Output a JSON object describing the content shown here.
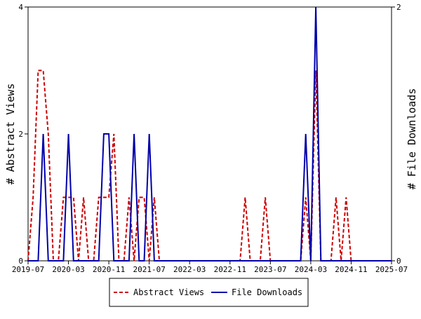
{
  "chart_data": {
    "type": "line",
    "title": "",
    "xlabel": "",
    "ylabel": "# Abstract Views",
    "y2label": "# File Downloads",
    "ylim": [
      0,
      4
    ],
    "y2lim": [
      0,
      2
    ],
    "yticks": [
      "0",
      "2",
      "4"
    ],
    "y2ticks": [
      "0",
      "2"
    ],
    "xticks": [
      "2019-07",
      "2020-03",
      "2020-11",
      "2021-07",
      "2022-03",
      "2022-11",
      "2023-07",
      "2024-03",
      "2024-11",
      "2025-07"
    ],
    "x_start": "2019-07",
    "x_end": "2025-07",
    "grid": false,
    "legend_position": "bottom",
    "series": [
      {
        "name": "Abstract Views",
        "axis": "left",
        "color": "#cc0000",
        "dash": "dashed",
        "points": [
          [
            "2019-07",
            0
          ],
          [
            "2019-08",
            1
          ],
          [
            "2019-09",
            3
          ],
          [
            "2019-10",
            3
          ],
          [
            "2019-11",
            2
          ],
          [
            "2019-12",
            0
          ],
          [
            "2020-01",
            0
          ],
          [
            "2020-02",
            1
          ],
          [
            "2020-03",
            1
          ],
          [
            "2020-04",
            1
          ],
          [
            "2020-05",
            0
          ],
          [
            "2020-06",
            1
          ],
          [
            "2020-07",
            0
          ],
          [
            "2020-08",
            0
          ],
          [
            "2020-09",
            1
          ],
          [
            "2020-10",
            1
          ],
          [
            "2020-11",
            1
          ],
          [
            "2020-12",
            2
          ],
          [
            "2021-01",
            0
          ],
          [
            "2021-02",
            0
          ],
          [
            "2021-03",
            1
          ],
          [
            "2021-04",
            0
          ],
          [
            "2021-05",
            1
          ],
          [
            "2021-06",
            1
          ],
          [
            "2021-07",
            0
          ],
          [
            "2021-08",
            1
          ],
          [
            "2021-09",
            0
          ],
          [
            "2023-01",
            0
          ],
          [
            "2023-02",
            1
          ],
          [
            "2023-03",
            0
          ],
          [
            "2023-05",
            0
          ],
          [
            "2023-06",
            1
          ],
          [
            "2023-07",
            0
          ],
          [
            "2024-01",
            0
          ],
          [
            "2024-02",
            1
          ],
          [
            "2024-03",
            0
          ],
          [
            "2024-04",
            3
          ],
          [
            "2024-05",
            0
          ],
          [
            "2024-07",
            0
          ],
          [
            "2024-08",
            1
          ],
          [
            "2024-09",
            0
          ],
          [
            "2024-10",
            1
          ],
          [
            "2024-11",
            0
          ],
          [
            "2025-07",
            0
          ]
        ]
      },
      {
        "name": "File Downloads",
        "axis": "right",
        "color": "#0000aa",
        "dash": "solid",
        "points": [
          [
            "2019-07",
            0
          ],
          [
            "2019-08",
            0
          ],
          [
            "2019-09",
            0
          ],
          [
            "2019-10",
            1
          ],
          [
            "2019-11",
            0
          ],
          [
            "2020-02",
            0
          ],
          [
            "2020-03",
            1
          ],
          [
            "2020-04",
            0
          ],
          [
            "2020-09",
            0
          ],
          [
            "2020-10",
            1
          ],
          [
            "2020-11",
            1
          ],
          [
            "2020-12",
            0
          ],
          [
            "2021-03",
            0
          ],
          [
            "2021-04",
            1
          ],
          [
            "2021-05",
            0
          ],
          [
            "2021-06",
            0
          ],
          [
            "2021-07",
            1
          ],
          [
            "2021-08",
            0
          ],
          [
            "2024-01",
            0
          ],
          [
            "2024-02",
            1
          ],
          [
            "2024-03",
            0
          ],
          [
            "2024-04",
            2
          ],
          [
            "2024-05",
            0
          ],
          [
            "2025-07",
            0
          ]
        ]
      }
    ]
  }
}
